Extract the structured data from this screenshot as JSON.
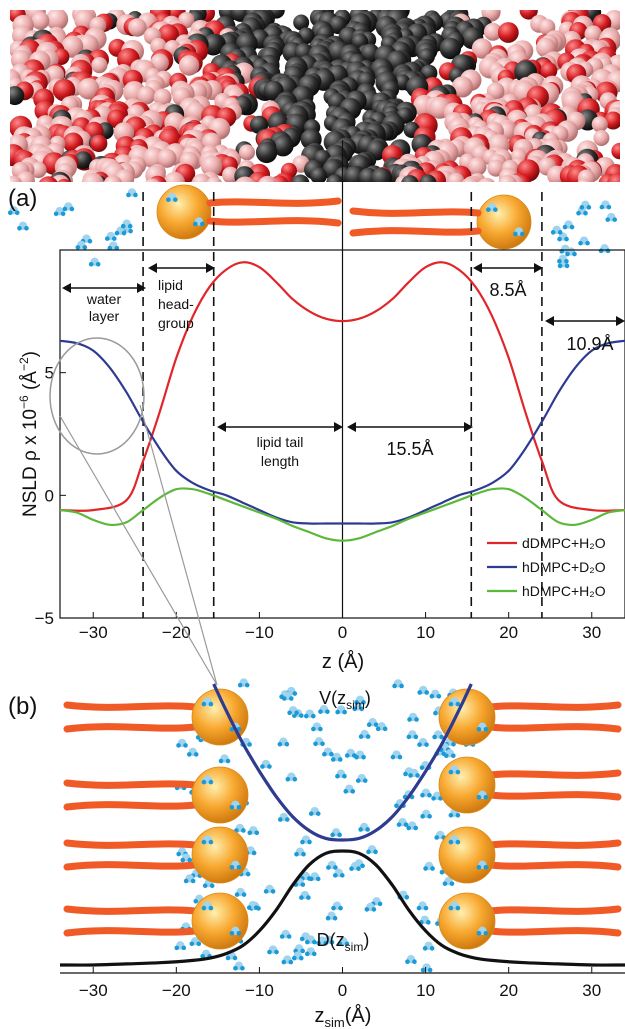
{
  "panel_labels": {
    "a": "(a)",
    "b": "(b)"
  },
  "top_panel": {
    "ylabel_main": "NSLD ρ x 10",
    "ylabel_sup": "−6",
    "ylabel_unit_open": " (Å",
    "ylabel_unit_sup": "−2",
    "ylabel_unit_close": ")",
    "xlabel": "z (Å)",
    "annotations": {
      "water_layer": [
        "water",
        "layer"
      ],
      "head_group": [
        "lipid",
        "head-",
        "group"
      ],
      "tail_length": [
        "lipid tail",
        "length"
      ],
      "d_155": "15.5Å",
      "d_85": "8.5Å",
      "d_109": "10.9Å"
    }
  },
  "bottom_panel": {
    "xlabel_main": "z",
    "xlabel_sub": "sim",
    "xlabel_tail": "(Å)",
    "v_label": {
      "main": "V(z",
      "sub": "sim",
      "close": ")"
    },
    "d_label": {
      "main": "D(z",
      "sub": "sim",
      "close": ")"
    }
  },
  "colors": {
    "red": "#e0262a",
    "blue": "#2e3b91",
    "green": "#5cb83a",
    "black": "#111111",
    "tail": "#f05a26",
    "head": "#f8a830",
    "water_light": "#9fd3ee",
    "water_dark": "#1b9ad6",
    "carbon": "#2b2b2b",
    "oxygen": "#d11a1f",
    "hydrogen": "#e8a8a8"
  },
  "chart_data": [
    {
      "type": "line",
      "xlabel": "z (Å)",
      "ylabel": "NSLD ρ x 10−6 (Å−2)",
      "xlim": [
        -34,
        34
      ],
      "ylim": [
        -5,
        10
      ],
      "xticks": [
        -30,
        -20,
        -10,
        0,
        10,
        20,
        30
      ],
      "yticks": [
        -5,
        0,
        5
      ],
      "legend_position": "bottom-right",
      "dashed_lines_x": [
        -24,
        -15.5,
        15.5,
        24
      ],
      "solid_line_x": 0,
      "series": [
        {
          "name": "dDMPC+H₂O",
          "color": "#e0262a",
          "x": [
            -34,
            -30,
            -26,
            -24,
            -22,
            -20,
            -18,
            -16,
            -14,
            -12,
            -10,
            -8,
            -6,
            -4,
            -2,
            0,
            2,
            4,
            6,
            8,
            10,
            12,
            14,
            16,
            18,
            20,
            22,
            24,
            26,
            30,
            34
          ],
          "y": [
            -0.6,
            -0.6,
            -0.2,
            1.4,
            3.4,
            5.6,
            7.3,
            8.5,
            9.2,
            9.5,
            9.3,
            8.7,
            8.0,
            7.5,
            7.2,
            7.1,
            7.2,
            7.5,
            8.0,
            8.7,
            9.3,
            9.5,
            9.2,
            8.5,
            7.3,
            5.6,
            3.4,
            1.4,
            -0.2,
            -0.6,
            -0.6
          ]
        },
        {
          "name": "hDMPC+D₂O",
          "color": "#2e3b91",
          "x": [
            -34,
            -32,
            -30,
            -28,
            -26,
            -24,
            -22,
            -20,
            -18,
            -16,
            -14,
            -12,
            -10,
            -8,
            -6,
            -4,
            -2,
            0,
            2,
            4,
            6,
            8,
            10,
            12,
            14,
            16,
            18,
            20,
            22,
            24,
            26,
            28,
            30,
            32,
            34
          ],
          "y": [
            6.3,
            6.2,
            5.9,
            5.2,
            4.2,
            3.0,
            1.9,
            1.0,
            0.5,
            0.2,
            0.0,
            -0.3,
            -0.6,
            -0.9,
            -1.1,
            -1.15,
            -1.15,
            -1.15,
            -1.15,
            -1.15,
            -1.1,
            -0.9,
            -0.6,
            -0.3,
            0.0,
            0.2,
            0.5,
            1.0,
            1.9,
            3.0,
            4.2,
            5.2,
            5.9,
            6.2,
            6.3
          ]
        },
        {
          "name": "hDMPC+H₂O",
          "color": "#5cb83a",
          "x": [
            -34,
            -32,
            -30,
            -28,
            -26,
            -24,
            -22,
            -20,
            -18,
            -16,
            -14,
            -12,
            -10,
            -8,
            -6,
            -4,
            -2,
            0,
            2,
            4,
            6,
            8,
            10,
            12,
            14,
            16,
            18,
            20,
            22,
            24,
            26,
            28,
            30,
            32,
            34
          ],
          "y": [
            -0.6,
            -0.7,
            -1.0,
            -1.2,
            -1.1,
            -0.6,
            -0.1,
            0.25,
            0.25,
            0.05,
            -0.2,
            -0.45,
            -0.7,
            -0.95,
            -1.25,
            -1.5,
            -1.75,
            -1.85,
            -1.75,
            -1.5,
            -1.25,
            -0.95,
            -0.7,
            -0.45,
            -0.2,
            0.05,
            0.25,
            0.25,
            -0.1,
            -0.6,
            -1.1,
            -1.2,
            -1.0,
            -0.7,
            -0.6
          ]
        }
      ]
    },
    {
      "type": "line",
      "xlabel": "zsim(Å)",
      "xlim": [
        -34,
        34
      ],
      "xticks": [
        -30,
        -20,
        -10,
        0,
        10,
        20,
        30
      ],
      "series": [
        {
          "name": "V(zsim)",
          "color": "#2e3b91",
          "x": [
            -15.5,
            -14,
            -12,
            -10,
            -8,
            -6,
            -4,
            -2,
            0,
            2,
            4,
            6,
            8,
            10,
            12,
            14,
            15.5
          ],
          "y": [
            1.0,
            0.83,
            0.62,
            0.44,
            0.28,
            0.15,
            0.06,
            0.01,
            0.0,
            0.01,
            0.06,
            0.15,
            0.28,
            0.44,
            0.62,
            0.83,
            1.0
          ]
        },
        {
          "name": "D(zsim)",
          "color": "#111111",
          "x": [
            -34,
            -30,
            -26,
            -22,
            -18,
            -16,
            -14,
            -12,
            -10,
            -8,
            -6,
            -4,
            -2,
            0,
            2,
            4,
            6,
            8,
            10,
            12,
            14,
            16,
            18,
            22,
            26,
            30,
            34
          ],
          "y": [
            0.0,
            0.0,
            0.01,
            0.02,
            0.04,
            0.06,
            0.1,
            0.17,
            0.3,
            0.48,
            0.7,
            0.88,
            0.98,
            1.0,
            0.98,
            0.88,
            0.7,
            0.48,
            0.3,
            0.17,
            0.1,
            0.06,
            0.04,
            0.02,
            0.01,
            0.0,
            0.0
          ]
        }
      ]
    }
  ]
}
